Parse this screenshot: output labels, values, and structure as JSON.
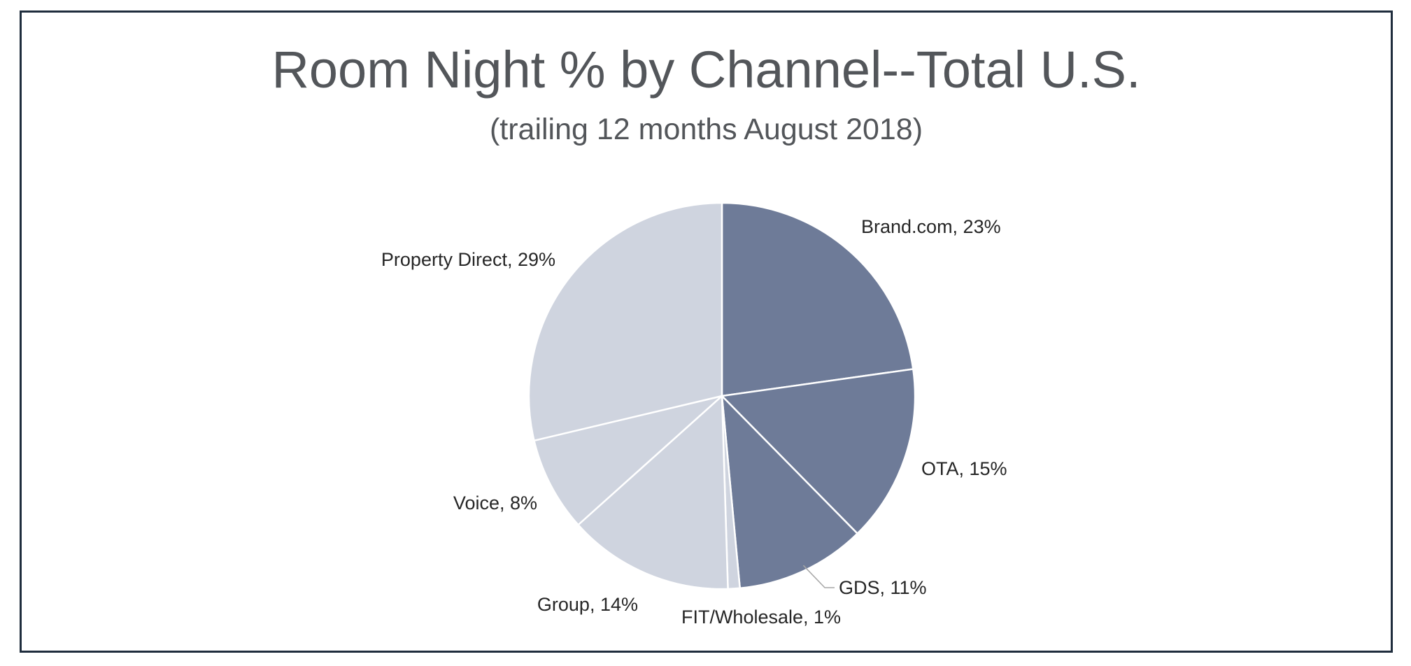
{
  "chart_data": {
    "type": "pie",
    "title": "Room Night % by Channel--Total U.S.",
    "subtitle": "(trailing 12 months August 2018)",
    "start_angle_deg": 0,
    "direction": "clockwise",
    "legend": "none",
    "slices": [
      {
        "name": "Brand.com",
        "value": 23,
        "label": "Brand.com, 23%",
        "color": "#6e7b98"
      },
      {
        "name": "OTA",
        "value": 15,
        "label": "OTA, 15%",
        "color": "#6e7b98"
      },
      {
        "name": "GDS",
        "value": 11,
        "label": "GDS, 11%",
        "color": "#6e7b98"
      },
      {
        "name": "FIT/Wholesale",
        "value": 1,
        "label": "FIT/Wholesale, 1%",
        "color": "#cfd4df"
      },
      {
        "name": "Group",
        "value": 14,
        "label": "Group, 14%",
        "color": "#cfd4df"
      },
      {
        "name": "Voice",
        "value": 8,
        "label": "Voice, 8%",
        "color": "#cfd4df"
      },
      {
        "name": "Property Direct",
        "value": 29,
        "label": "Property Direct, 29%",
        "color": "#cfd4df"
      }
    ]
  }
}
